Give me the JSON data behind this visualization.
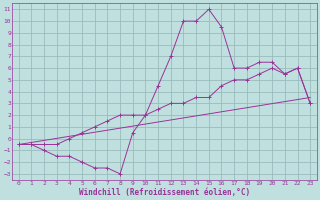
{
  "xlabel": "Windchill (Refroidissement éolien,°C)",
  "background_color": "#c0e0e0",
  "line_color": "#993399",
  "grid_color": "#99bbbb",
  "xlim": [
    -0.5,
    23.5
  ],
  "ylim": [
    -3.5,
    11.5
  ],
  "xticks": [
    0,
    1,
    2,
    3,
    4,
    5,
    6,
    7,
    8,
    9,
    10,
    11,
    12,
    13,
    14,
    15,
    16,
    17,
    18,
    19,
    20,
    21,
    22,
    23
  ],
  "yticks": [
    -3,
    -2,
    -1,
    0,
    1,
    2,
    3,
    4,
    5,
    6,
    7,
    8,
    9,
    10,
    11
  ],
  "line1_x": [
    0,
    1,
    2,
    3,
    4,
    5,
    6,
    7,
    8,
    9,
    10,
    11,
    12,
    13,
    14,
    15,
    16,
    17,
    18,
    19,
    20,
    21,
    22,
    23
  ],
  "line1_y": [
    -0.5,
    -0.5,
    -1.0,
    -1.5,
    -1.5,
    -2.0,
    -2.5,
    -2.5,
    -3.0,
    0.5,
    2.0,
    4.5,
    7.0,
    10.0,
    10.0,
    11.0,
    9.5,
    6.0,
    6.0,
    6.5,
    6.5,
    5.5,
    6.0,
    3.0
  ],
  "line2_x": [
    0,
    1,
    2,
    3,
    4,
    5,
    6,
    7,
    8,
    9,
    10,
    11,
    12,
    13,
    14,
    15,
    16,
    17,
    18,
    19,
    20,
    21,
    22,
    23
  ],
  "line2_y": [
    -0.5,
    -0.5,
    -0.5,
    -0.5,
    0.0,
    0.5,
    1.0,
    1.5,
    2.0,
    2.0,
    2.0,
    2.5,
    3.0,
    3.0,
    3.5,
    3.5,
    4.5,
    5.0,
    5.0,
    5.5,
    6.0,
    5.5,
    6.0,
    3.0
  ],
  "line3_x": [
    0,
    23
  ],
  "line3_y": [
    -0.5,
    3.5
  ]
}
